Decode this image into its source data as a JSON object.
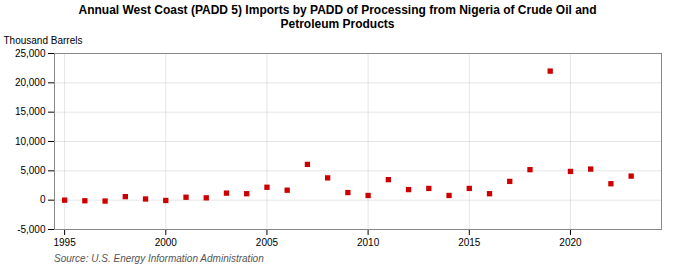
{
  "chart_data": {
    "type": "scatter",
    "title": "Annual West Coast (PADD 5) Imports by PADD of Processing from Nigeria of Crude Oil and\nPetroleum Products",
    "ylabel": "Thousand Barrels",
    "source": "Source: U.S. Energy Information Administration",
    "x": [
      1995,
      1996,
      1997,
      1998,
      1999,
      2000,
      2001,
      2002,
      2003,
      2004,
      2005,
      2006,
      2007,
      2008,
      2009,
      2010,
      2011,
      2012,
      2013,
      2014,
      2015,
      2016,
      2017,
      2018,
      2019,
      2020,
      2021,
      2022,
      2023
    ],
    "values": [
      0,
      -100,
      -150,
      600,
      200,
      -50,
      500,
      400,
      1200,
      1100,
      2200,
      1700,
      6100,
      3800,
      1300,
      800,
      3500,
      1800,
      2000,
      800,
      2000,
      1100,
      3200,
      5200,
      22000,
      4900,
      5300,
      2800,
      4100
    ],
    "color": "#cc0000",
    "marker": "square",
    "xlim": [
      1994.5,
      2024.5
    ],
    "xticks": [
      1995,
      2000,
      2005,
      2010,
      2015,
      2020
    ],
    "ylim": [
      -5000,
      25000
    ],
    "yticks": [
      {
        "value": -5000,
        "label": "-5,000"
      },
      0,
      {
        "value": 5000,
        "label": "5,000"
      },
      {
        "value": 10000,
        "label": "10,000"
      },
      {
        "value": 15000,
        "label": "15,000"
      },
      {
        "value": 20000,
        "label": "20,000"
      },
      {
        "value": 25000,
        "label": "25,000"
      }
    ],
    "grid": true
  }
}
